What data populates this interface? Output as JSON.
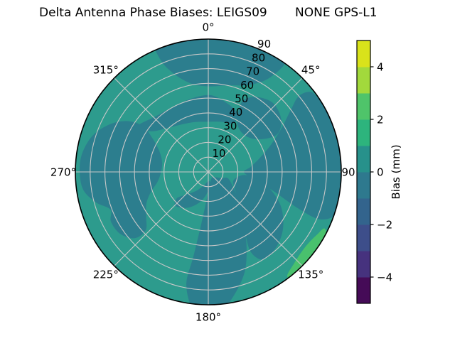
{
  "figure": {
    "title_left": "Delta Antenna Phase Biases: LEIGS09",
    "title_right": "NONE GPS-L1"
  },
  "chart_data": {
    "type": "polar_contour",
    "title": "Delta Antenna Phase Biases: LEIGS09    NONE GPS-L1",
    "station": "LEIGS09",
    "antenna": "NONE",
    "signal": "GPS-L1",
    "angular_tick_labels": [
      "0°",
      "45°",
      "90",
      "135°",
      "180°",
      "225°",
      "270°",
      "315°"
    ],
    "radial_tick_labels": [
      "10",
      "20",
      "30",
      "40",
      "50",
      "60",
      "70",
      "80",
      "90"
    ],
    "radial_range": [
      0,
      90
    ],
    "radial_label_azimuth_deg": 22.5,
    "grid": "on",
    "grid_color": "#c8c8c8",
    "outline_color": "#000000",
    "colorbar": {
      "label": "Bias (mm)",
      "tick_labels": [
        "4",
        "2",
        "0",
        "−2",
        "−4"
      ],
      "tick_values": [
        4,
        2,
        0,
        -2,
        -4
      ],
      "range": [
        -5,
        5
      ],
      "segment_colors_bottom_to_top": [
        "#450b57",
        "#46327e",
        "#3d4e8a",
        "#33648d",
        "#2e798e",
        "#27918b",
        "#2db47d",
        "#4fc46a",
        "#a2d93c",
        "#d9e21b"
      ]
    },
    "levels": {
      "base_fill": {
        "bias_mm": "0 to 1",
        "color": "#2d9b8d"
      },
      "dark_fill": {
        "bias_mm": "-1 to 0",
        "color": "#2c7e8e"
      },
      "green_fill": {
        "bias_mm": "1 to 2",
        "color": "#49c16d"
      }
    },
    "regions": [
      {
        "name": "north-rim-band",
        "level": "-1 to 0",
        "points": [
          [
            338,
            95
          ],
          [
            350,
            95
          ],
          [
            3,
            95
          ],
          [
            15,
            95
          ],
          [
            28,
            95
          ],
          [
            35,
            92
          ],
          [
            33,
            76
          ],
          [
            25,
            65
          ],
          [
            12,
            60
          ],
          [
            0,
            58
          ],
          [
            349,
            61
          ],
          [
            341,
            70
          ],
          [
            337,
            82
          ]
        ]
      },
      {
        "name": "north-mid-band",
        "level": "-1 to 0",
        "points": [
          [
            303,
            57
          ],
          [
            316,
            52
          ],
          [
            331,
            50
          ],
          [
            347,
            51
          ],
          [
            2,
            52
          ],
          [
            16,
            48
          ],
          [
            27,
            44
          ],
          [
            27,
            37
          ],
          [
            14,
            35
          ],
          [
            0,
            34
          ],
          [
            345,
            35
          ],
          [
            330,
            37
          ],
          [
            316,
            41
          ],
          [
            305,
            48
          ]
        ]
      },
      {
        "name": "ne-mid-blob",
        "level": "-1 to 0",
        "points": [
          [
            26,
            48
          ],
          [
            30,
            39
          ],
          [
            40,
            35
          ],
          [
            52,
            37
          ],
          [
            60,
            45
          ],
          [
            61,
            54
          ],
          [
            54,
            61
          ],
          [
            43,
            64
          ],
          [
            32,
            60
          ],
          [
            26,
            54
          ]
        ]
      },
      {
        "name": "east-band",
        "level": "-1 to 0",
        "points": [
          [
            57,
            90
          ],
          [
            63,
            95
          ],
          [
            75,
            95
          ],
          [
            88,
            95
          ],
          [
            100,
            95
          ],
          [
            108,
            92
          ],
          [
            113,
            82
          ],
          [
            112,
            65
          ],
          [
            106,
            45
          ],
          [
            98,
            30
          ],
          [
            90,
            24
          ],
          [
            83,
            29
          ],
          [
            74,
            37
          ],
          [
            66,
            47
          ],
          [
            59,
            58
          ],
          [
            53,
            70
          ],
          [
            50,
            80
          ],
          [
            52,
            88
          ]
        ]
      },
      {
        "name": "se-blob",
        "level": "-1 to 0",
        "points": [
          [
            95,
            24
          ],
          [
            108,
            18
          ],
          [
            122,
            21
          ],
          [
            134,
            28
          ],
          [
            144,
            39
          ],
          [
            150,
            51
          ],
          [
            152,
            62
          ],
          [
            148,
            70
          ],
          [
            139,
            69
          ],
          [
            128,
            64
          ],
          [
            116,
            55
          ],
          [
            106,
            44
          ],
          [
            98,
            33
          ]
        ]
      },
      {
        "name": "south-limb",
        "level": "-1 to 0",
        "points": [
          [
            186,
            95
          ],
          [
            191,
            78
          ],
          [
            190,
            58
          ],
          [
            188,
            38
          ],
          [
            183,
            18
          ],
          [
            172,
            8
          ],
          [
            155,
            5
          ],
          [
            135,
            5
          ],
          [
            115,
            10
          ],
          [
            108,
            14
          ],
          [
            122,
            20
          ],
          [
            135,
            30
          ],
          [
            146,
            43
          ],
          [
            153,
            57
          ],
          [
            160,
            72
          ],
          [
            168,
            85
          ],
          [
            175,
            95
          ],
          [
            181,
            95
          ]
        ]
      },
      {
        "name": "center-sw-tongue",
        "level": "-1 to 0",
        "points": [
          [
            178,
            6
          ],
          [
            196,
            9
          ],
          [
            212,
            15
          ],
          [
            225,
            22
          ],
          [
            230,
            28
          ],
          [
            224,
            32
          ],
          [
            210,
            28
          ],
          [
            195,
            21
          ],
          [
            180,
            13
          ],
          [
            170,
            8
          ]
        ]
      },
      {
        "name": "west-blob",
        "level": "-1 to 0",
        "points": [
          [
            227,
            58
          ],
          [
            234,
            52
          ],
          [
            243,
            47
          ],
          [
            251,
            41
          ],
          [
            259,
            35
          ],
          [
            270,
            32
          ],
          [
            282,
            32
          ],
          [
            293,
            36
          ],
          [
            301,
            44
          ],
          [
            305,
            54
          ],
          [
            302,
            65
          ],
          [
            295,
            75
          ],
          [
            286,
            83
          ],
          [
            275,
            87
          ],
          [
            263,
            86
          ],
          [
            255,
            79
          ],
          [
            249,
            71
          ],
          [
            243,
            74
          ],
          [
            235,
            73
          ],
          [
            228,
            67
          ]
        ]
      },
      {
        "name": "se-rim-green-sliver",
        "level": "1 to 2",
        "points": [
          [
            116,
            88
          ],
          [
            122,
            95
          ],
          [
            130,
            95
          ],
          [
            138,
            95
          ],
          [
            143,
            89
          ],
          [
            137,
            85
          ],
          [
            128,
            83
          ],
          [
            120,
            85
          ]
        ]
      }
    ]
  }
}
